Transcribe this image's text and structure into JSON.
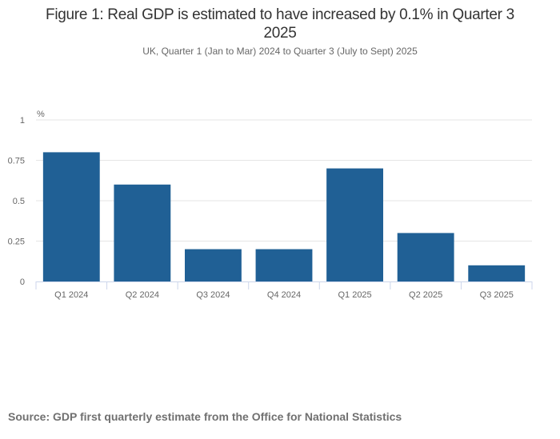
{
  "chart_data": {
    "type": "bar",
    "title": "Figure 1: Real GDP is estimated to have increased by 0.1% in Quarter 3 2025",
    "subtitle": "UK, Quarter 1 (Jan to Mar) 2024 to Quarter 3 (July to Sept) 2025",
    "ylabel": "%",
    "xlabel": "",
    "categories": [
      "Q1 2024",
      "Q2 2024",
      "Q3 2024",
      "Q4 2024",
      "Q1 2025",
      "Q2 2025",
      "Q3 2025"
    ],
    "values": [
      0.8,
      0.6,
      0.2,
      0.2,
      0.7,
      0.3,
      0.1
    ],
    "ylim": [
      0,
      1
    ],
    "yticks": [
      "0",
      "0.25",
      "0.5",
      "0.75",
      "1"
    ],
    "grid": true,
    "bar_color": "#206095"
  },
  "source": "Source: GDP first quarterly estimate from the Office for National Statistics"
}
